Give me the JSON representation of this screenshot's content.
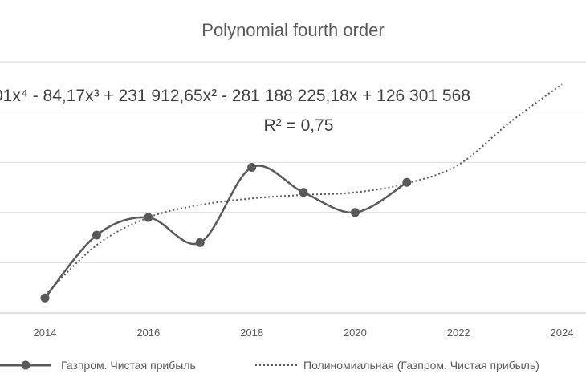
{
  "chart_data": {
    "type": "line",
    "title": "Polynomial fourth order",
    "trendline_equation": "01x⁴ - 84,17x³ + 231 912,65x² - 281 188 225,18x + 126 301 568",
    "r_squared": "R² = 0,75",
    "x_ticks": [
      "2014",
      "2016",
      "2018",
      "2020",
      "2022",
      "2024"
    ],
    "xlim": [
      2014,
      2024
    ],
    "grid": "horizontal",
    "legend_position": "bottom",
    "series": [
      {
        "name": "Газпром. Чистая прибыль",
        "style": "solid-with-markers",
        "color": "#595959",
        "x": [
          2014,
          2015,
          2016,
          2017,
          2018,
          2019,
          2020,
          2021
        ],
        "y": [
          0.3,
          1.55,
          1.9,
          1.4,
          2.9,
          2.4,
          2.0,
          2.6
        ]
      },
      {
        "name": "Полиномиальная (Газпром. Чистая прибыль)",
        "style": "dotted",
        "color": "#595959",
        "x": [
          2014,
          2015,
          2016,
          2017,
          2018,
          2019,
          2020,
          2021,
          2022,
          2023,
          2024
        ],
        "y": [
          0.35,
          1.35,
          1.9,
          2.15,
          2.28,
          2.35,
          2.4,
          2.58,
          2.95,
          3.8,
          4.55
        ]
      }
    ],
    "ylim": [
      0,
      5
    ]
  }
}
